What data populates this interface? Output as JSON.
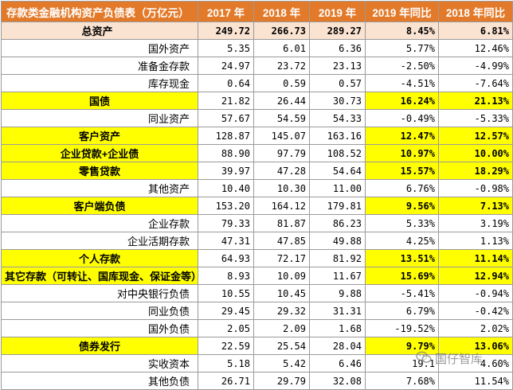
{
  "table": {
    "header": {
      "name": "存款类金融机构资产负债表（万亿元）",
      "y2017": "2017 年",
      "y2018": "2018 年",
      "y2019": "2019 年",
      "yoy2019": "2019 年同比",
      "yoy2018": "2018 年同比"
    },
    "rows": [
      {
        "name": "总资产",
        "y2017": "249.72",
        "y2018": "266.73",
        "y2019": "289.27",
        "yoy2019": "8.45%",
        "yoy2018": "6.81%"
      },
      {
        "name": "国外资产",
        "y2017": "5.35",
        "y2018": "6.01",
        "y2019": "6.36",
        "yoy2019": "5.77%",
        "yoy2018": "12.46%"
      },
      {
        "name": "准备金存款",
        "y2017": "24.97",
        "y2018": "23.72",
        "y2019": "23.13",
        "yoy2019": "-2.50%",
        "yoy2018": "-4.99%"
      },
      {
        "name": "库存现金",
        "y2017": "0.64",
        "y2018": "0.59",
        "y2019": "0.57",
        "yoy2019": "-4.51%",
        "yoy2018": "-7.64%"
      },
      {
        "name": "国债",
        "y2017": "21.82",
        "y2018": "26.44",
        "y2019": "30.73",
        "yoy2019": "16.24%",
        "yoy2018": "21.13%"
      },
      {
        "name": "同业资产",
        "y2017": "57.67",
        "y2018": "54.59",
        "y2019": "54.33",
        "yoy2019": "-0.49%",
        "yoy2018": "-5.33%"
      },
      {
        "name": "客户资产",
        "y2017": "128.87",
        "y2018": "145.07",
        "y2019": "163.16",
        "yoy2019": "12.47%",
        "yoy2018": "12.57%"
      },
      {
        "name": "企业贷款+企业债",
        "y2017": "88.90",
        "y2018": "97.79",
        "y2019": "108.52",
        "yoy2019": "10.97%",
        "yoy2018": "10.00%"
      },
      {
        "name": "零售贷款",
        "y2017": "39.97",
        "y2018": "47.28",
        "y2019": "54.64",
        "yoy2019": "15.57%",
        "yoy2018": "18.29%"
      },
      {
        "name": "其他资产",
        "y2017": "10.40",
        "y2018": "10.30",
        "y2019": "11.00",
        "yoy2019": "6.76%",
        "yoy2018": "-0.98%"
      },
      {
        "name": "客户端负债",
        "y2017": "153.20",
        "y2018": "164.12",
        "y2019": "179.81",
        "yoy2019": "9.56%",
        "yoy2018": "7.13%"
      },
      {
        "name": "企业存款",
        "y2017": "79.33",
        "y2018": "81.87",
        "y2019": "86.23",
        "yoy2019": "5.33%",
        "yoy2018": "3.19%"
      },
      {
        "name": "企业活期存款",
        "y2017": "47.31",
        "y2018": "47.85",
        "y2019": "49.88",
        "yoy2019": "4.25%",
        "yoy2018": "1.13%"
      },
      {
        "name": "个人存款",
        "y2017": "64.93",
        "y2018": "72.17",
        "y2019": "81.92",
        "yoy2019": "13.51%",
        "yoy2018": "11.14%"
      },
      {
        "name": "其它存款（可转让、国库现金、保证金等）",
        "y2017": "8.93",
        "y2018": "10.09",
        "y2019": "11.67",
        "yoy2019": "15.69%",
        "yoy2018": "12.94%"
      },
      {
        "name": "对中央银行负债",
        "y2017": "10.55",
        "y2018": "10.45",
        "y2019": "9.88",
        "yoy2019": "-5.41%",
        "yoy2018": "-0.94%"
      },
      {
        "name": "同业负债",
        "y2017": "29.45",
        "y2018": "29.32",
        "y2019": "31.31",
        "yoy2019": "6.79%",
        "yoy2018": "-0.42%"
      },
      {
        "name": "国外负债",
        "y2017": "2.05",
        "y2018": "2.09",
        "y2019": "1.68",
        "yoy2019": "-19.52%",
        "yoy2018": "2.02%"
      },
      {
        "name": "债券发行",
        "y2017": "22.59",
        "y2018": "25.54",
        "y2019": "28.04",
        "yoy2019": "9.79%",
        "yoy2018": "13.06%"
      },
      {
        "name": "实收资本",
        "y2017": "5.18",
        "y2018": "5.42",
        "y2019": "6.46",
        "yoy2019": "19.1",
        "yoy2018": "4.60%"
      },
      {
        "name": "其他负债",
        "y2017": "26.71",
        "y2018": "29.79",
        "y2019": "32.08",
        "yoy2019": "7.68%",
        "yoy2018": "11.54%"
      }
    ]
  },
  "watermark": {
    "icon": "wechat-icon",
    "text": "国仔智库"
  }
}
